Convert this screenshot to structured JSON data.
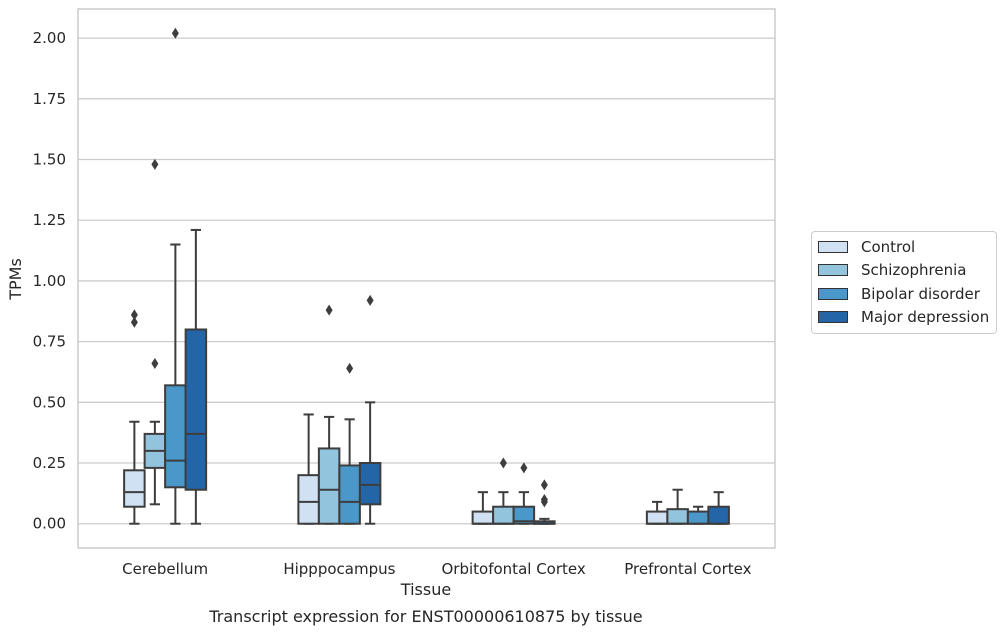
{
  "chart_data": {
    "type": "box",
    "xlabel": "Tissue",
    "ylabel": "TPMs",
    "caption": "Transcript expression for ENST00000610875 by tissue",
    "ylim": [
      -0.1,
      2.12
    ],
    "yticks": [
      0.0,
      0.25,
      0.5,
      0.75,
      1.0,
      1.25,
      1.5,
      1.75,
      2.0
    ],
    "ytick_labels": [
      "0.00",
      "0.25",
      "0.50",
      "0.75",
      "1.00",
      "1.25",
      "1.50",
      "1.75",
      "2.00"
    ],
    "grid": "horizontal",
    "legend_position": "right",
    "categories": [
      "Cerebellum",
      "Hipppocampus",
      "Orbitofontal Cortex",
      "Prefrontal Cortex"
    ],
    "series": [
      {
        "name": "Control",
        "color": "#cfe1f2",
        "boxes": [
          {
            "whisker_low": 0.0,
            "q1": 0.07,
            "median": 0.13,
            "q3": 0.22,
            "whisker_high": 0.42,
            "outliers": [
              0.83,
              0.86
            ]
          },
          {
            "whisker_low": 0.0,
            "q1": 0.0,
            "median": 0.09,
            "q3": 0.2,
            "whisker_high": 0.45,
            "outliers": []
          },
          {
            "whisker_low": 0.0,
            "q1": 0.0,
            "median": 0.0,
            "q3": 0.05,
            "whisker_high": 0.13,
            "outliers": []
          },
          {
            "whisker_low": 0.0,
            "q1": 0.0,
            "median": 0.0,
            "q3": 0.05,
            "whisker_high": 0.09,
            "outliers": []
          }
        ]
      },
      {
        "name": "Schizophrenia",
        "color": "#93c4de",
        "boxes": [
          {
            "whisker_low": 0.08,
            "q1": 0.23,
            "median": 0.3,
            "q3": 0.37,
            "whisker_high": 0.42,
            "outliers": [
              0.66,
              1.48
            ]
          },
          {
            "whisker_low": 0.0,
            "q1": 0.0,
            "median": 0.14,
            "q3": 0.31,
            "whisker_high": 0.44,
            "outliers": [
              0.88
            ]
          },
          {
            "whisker_low": 0.0,
            "q1": 0.0,
            "median": 0.0,
            "q3": 0.07,
            "whisker_high": 0.13,
            "outliers": [
              0.25
            ]
          },
          {
            "whisker_low": 0.0,
            "q1": 0.0,
            "median": 0.0,
            "q3": 0.06,
            "whisker_high": 0.14,
            "outliers": []
          }
        ]
      },
      {
        "name": "Bipolar disorder",
        "color": "#4a98c9",
        "boxes": [
          {
            "whisker_low": 0.0,
            "q1": 0.15,
            "median": 0.26,
            "q3": 0.57,
            "whisker_high": 1.15,
            "outliers": [
              2.02
            ]
          },
          {
            "whisker_low": 0.0,
            "q1": 0.0,
            "median": 0.09,
            "q3": 0.24,
            "whisker_high": 0.43,
            "outliers": [
              0.64
            ]
          },
          {
            "whisker_low": 0.0,
            "q1": 0.0,
            "median": 0.01,
            "q3": 0.07,
            "whisker_high": 0.13,
            "outliers": [
              0.23
            ]
          },
          {
            "whisker_low": 0.0,
            "q1": 0.0,
            "median": 0.0,
            "q3": 0.05,
            "whisker_high": 0.07,
            "outliers": []
          }
        ]
      },
      {
        "name": "Major depression",
        "color": "#2465a8",
        "boxes": [
          {
            "whisker_low": 0.0,
            "q1": 0.14,
            "median": 0.37,
            "q3": 0.8,
            "whisker_high": 1.21,
            "outliers": []
          },
          {
            "whisker_low": 0.0,
            "q1": 0.08,
            "median": 0.16,
            "q3": 0.25,
            "whisker_high": 0.5,
            "outliers": [
              0.92
            ]
          },
          {
            "whisker_low": 0.0,
            "q1": 0.0,
            "median": 0.0,
            "q3": 0.01,
            "whisker_high": 0.02,
            "outliers": [
              0.09,
              0.1,
              0.16
            ]
          },
          {
            "whisker_low": 0.0,
            "q1": 0.0,
            "median": 0.0,
            "q3": 0.07,
            "whisker_high": 0.13,
            "outliers": []
          }
        ]
      }
    ]
  }
}
